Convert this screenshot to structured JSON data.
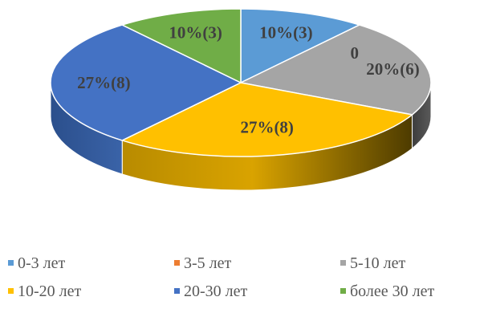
{
  "chart_data": {
    "type": "pie",
    "title": "",
    "categories": [
      "0-3 лет",
      "3-5 лет",
      "5-10 лет",
      "10-20 лет",
      "20-30 лет",
      "более 30 лет"
    ],
    "values": [
      3,
      0,
      6,
      8,
      8,
      3
    ],
    "percents": [
      10,
      0,
      20,
      27,
      27,
      10
    ],
    "data_labels": [
      "10%(3)",
      "0",
      "20%(6)",
      "27%(8)",
      "27%(8)",
      "10%(3)"
    ],
    "colors": [
      "#5b9bd5",
      "#ed7d31",
      "#a5a5a5",
      "#ffc000",
      "#4472c4",
      "#70ad47"
    ],
    "legend_position": "bottom",
    "style": "3d-pie"
  }
}
